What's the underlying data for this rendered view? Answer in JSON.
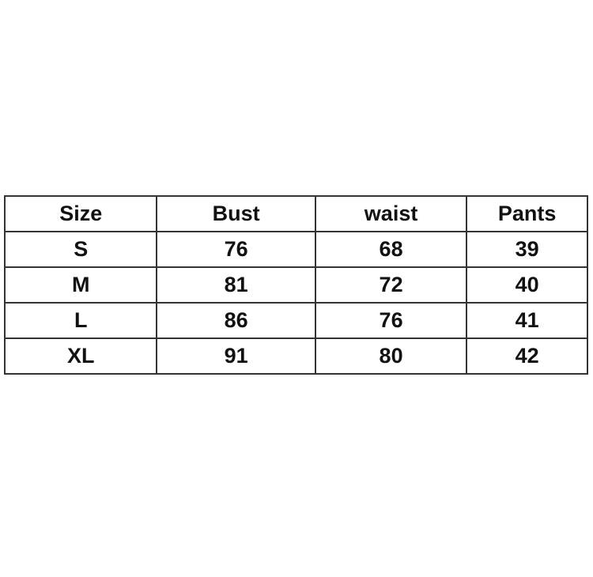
{
  "table": {
    "headers": [
      "Size",
      "Bust",
      "waist",
      "Pants"
    ],
    "rows": [
      [
        "S",
        "76",
        "68",
        "39"
      ],
      [
        "M",
        "81",
        "72",
        "40"
      ],
      [
        "L",
        "86",
        "76",
        "41"
      ],
      [
        "XL",
        "91",
        "80",
        "42"
      ]
    ]
  }
}
